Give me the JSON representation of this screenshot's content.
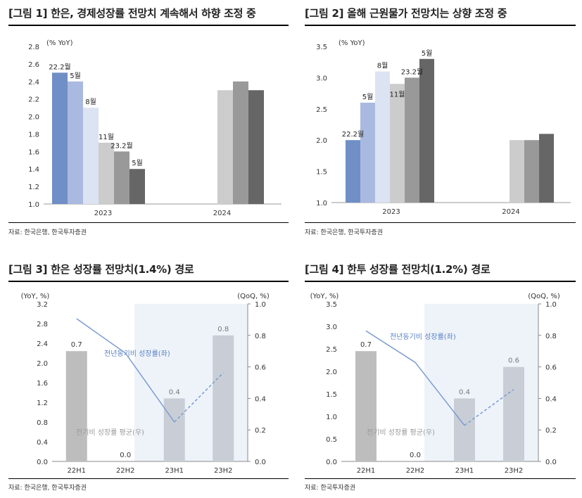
{
  "figures": [
    {
      "title": "[그림 1] 한은, 경제성장률 전망치 계속해서 하향 조정 중",
      "source": "자료: 한국은행, 한국투자증권"
    },
    {
      "title": "[그림 2] 올해 근원물가 전망치는 상향 조정 중",
      "source": "자료: 한국은행, 한국투자증권"
    },
    {
      "title": "[그림 3] 한은 성장률 전망치(1.4%) 경로",
      "source": "자료: 한국은행, 한국투자증권"
    },
    {
      "title": "[그림 4] 한투 성장률 전망치(1.2%) 경로",
      "source": "자료: 한국투자증권"
    }
  ],
  "chart_data": [
    {
      "type": "bar",
      "unit_label": "(% YoY)",
      "categories": [
        "2023",
        "2024"
      ],
      "ylim": [
        1.0,
        2.8
      ],
      "yticks": [
        "2.8",
        "2.6",
        "2.4",
        "2.2",
        "2.0",
        "1.8",
        "1.6",
        "1.4",
        "1.2",
        "1.0"
      ],
      "series": [
        {
          "name": "22.2월",
          "color": "#6f8fc6",
          "values": [
            2.5,
            null
          ]
        },
        {
          "name": "5월",
          "color": "#aab9e0",
          "values": [
            2.4,
            null
          ]
        },
        {
          "name": "8월",
          "color": "#dce3f3",
          "values": [
            2.1,
            null
          ]
        },
        {
          "name": "11월",
          "color": "#cccccc",
          "values": [
            1.7,
            2.3
          ]
        },
        {
          "name": "23.2월",
          "color": "#999999",
          "values": [
            1.6,
            2.4
          ]
        },
        {
          "name": "5월",
          "color": "#666666",
          "values": [
            1.4,
            2.3
          ]
        }
      ]
    },
    {
      "type": "bar",
      "unit_label": "(% YoY)",
      "categories": [
        "2023",
        "2024"
      ],
      "ylim": [
        1.0,
        3.5
      ],
      "yticks": [
        "3.5",
        "3.0",
        "2.5",
        "2.0",
        "1.5",
        "1.0"
      ],
      "series": [
        {
          "name": "22.2월",
          "color": "#6f8fc6",
          "values": [
            2.0,
            null
          ]
        },
        {
          "name": "5월",
          "color": "#aab9e0",
          "values": [
            2.6,
            null
          ]
        },
        {
          "name": "8월",
          "color": "#dce3f3",
          "values": [
            3.1,
            null
          ]
        },
        {
          "name": "11월",
          "color": "#cccccc",
          "values": [
            2.9,
            2.0
          ]
        },
        {
          "name": "23.2월",
          "color": "#999999",
          "values": [
            3.0,
            2.0
          ]
        },
        {
          "name": "5월",
          "color": "#666666",
          "values": [
            3.3,
            2.1
          ]
        }
      ]
    },
    {
      "type": "bar+line",
      "left_unit": "(YoY, %)",
      "right_unit": "(QoQ, %)",
      "categories": [
        "22H1",
        "22H2",
        "23H1",
        "23H2"
      ],
      "ylim": [
        0.0,
        3.2
      ],
      "y2lim": [
        0.0,
        1.0
      ],
      "yticks": [
        "3.2",
        "2.8",
        "2.4",
        "2.0",
        "1.6",
        "1.2",
        "0.8",
        "0.4",
        "0.0"
      ],
      "y2ticks": [
        "1.0",
        "0.8",
        "0.6",
        "0.4",
        "0.2",
        "0.0"
      ],
      "bars": {
        "name": "전기비 성장률 평균(우)",
        "values": [
          0.7,
          0.0,
          0.4,
          0.8
        ],
        "labels": [
          "0.7",
          "0.0",
          "0.4",
          "0.8"
        ]
      },
      "line": {
        "name": "전년동기비 성장률(좌)",
        "values": [
          2.9,
          2.2,
          0.8,
          1.8
        ],
        "actual_points": 3
      },
      "shaded_from": "23H1"
    },
    {
      "type": "bar+line",
      "left_unit": "(YoY, %)",
      "right_unit": "(QoQ, %)",
      "categories": [
        "22H1",
        "22H2",
        "23H1",
        "23H2"
      ],
      "ylim": [
        0.0,
        3.5
      ],
      "y2lim": [
        0.0,
        1.0
      ],
      "yticks": [
        "3.5",
        "3.0",
        "2.5",
        "2.0",
        "1.5",
        "1.0",
        "0.5",
        "0.0"
      ],
      "y2ticks": [
        "1.0",
        "0.8",
        "0.6",
        "0.4",
        "0.2",
        "0.0"
      ],
      "bars": {
        "name": "전기비 성장률 평균(우)",
        "values": [
          0.7,
          0.0,
          0.4,
          0.6
        ],
        "labels": [
          "0.7",
          "0.0",
          "0.4",
          "0.6"
        ]
      },
      "line": {
        "name": "전년동기비 성장률(좌)",
        "values": [
          2.9,
          2.2,
          0.8,
          1.6
        ],
        "actual_points": 3
      },
      "shaded_from": "23H1"
    }
  ]
}
